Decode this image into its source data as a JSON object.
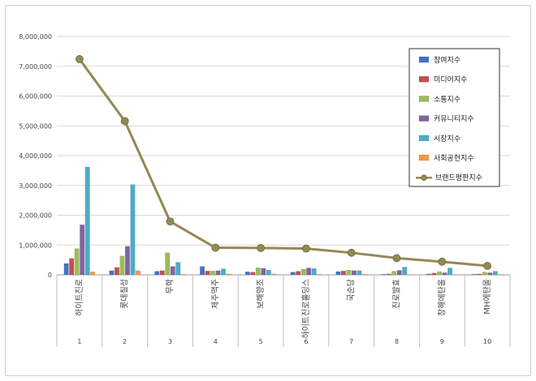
{
  "chart_data": {
    "type": "bar",
    "categories": [
      "하이트진로",
      "롯데칠성",
      "무학",
      "제주맥주",
      "보해양조",
      "하이트진로홀딩스",
      "국순당",
      "진로발효",
      "창해에탄올",
      "MH에탄올"
    ],
    "rank_labels": [
      "1",
      "2",
      "3",
      "4",
      "5",
      "6",
      "7",
      "8",
      "9",
      "10"
    ],
    "y_ticks": [
      "0",
      "1,000,000",
      "2,000,000",
      "3,000,000",
      "4,000,000",
      "5,000,000",
      "6,000,000",
      "7,000,000",
      "8,000,000"
    ],
    "ylim": [
      0,
      8000000
    ],
    "legend_position": "top-right",
    "grid": true,
    "series": [
      {
        "name": "참여지수",
        "color": "#4472c4",
        "values": [
          380000,
          140000,
          120000,
          280000,
          100000,
          90000,
          110000,
          20000,
          30000,
          20000
        ]
      },
      {
        "name": "미디어지수",
        "color": "#c0504d",
        "values": [
          550000,
          250000,
          140000,
          130000,
          90000,
          120000,
          130000,
          30000,
          60000,
          30000
        ]
      },
      {
        "name": "소통지수",
        "color": "#9bbb59",
        "values": [
          880000,
          630000,
          740000,
          130000,
          240000,
          190000,
          160000,
          120000,
          110000,
          90000
        ]
      },
      {
        "name": "커뮤니티지수",
        "color": "#8064a2",
        "values": [
          1680000,
          960000,
          280000,
          140000,
          220000,
          230000,
          140000,
          150000,
          70000,
          70000
        ]
      },
      {
        "name": "시장지수",
        "color": "#4bacc6",
        "values": [
          3620000,
          3030000,
          420000,
          200000,
          160000,
          210000,
          140000,
          260000,
          230000,
          120000
        ]
      },
      {
        "name": "사회공헌지수",
        "color": "#f79646",
        "values": [
          100000,
          140000,
          20000,
          30000,
          30000,
          20000,
          20000,
          10000,
          10000,
          10000
        ]
      }
    ],
    "line_series": {
      "name": "브랜드평판지수",
      "color": "#938953",
      "values": [
        7240000,
        5160000,
        1790000,
        910000,
        900000,
        880000,
        740000,
        560000,
        440000,
        300000
      ]
    }
  }
}
